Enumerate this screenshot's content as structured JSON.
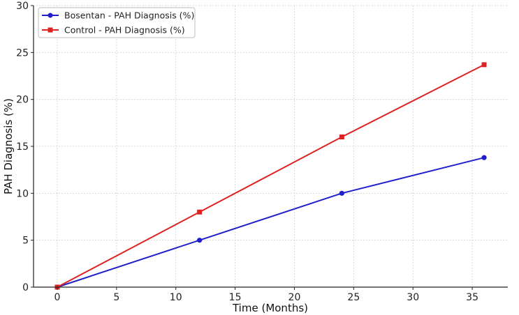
{
  "chart_data": {
    "type": "line",
    "title": "",
    "xlabel": "Time (Months)",
    "ylabel": "PAH Diagnosis (%)",
    "xlim": [
      -2,
      38
    ],
    "ylim": [
      0,
      30
    ],
    "xticks": [
      0,
      5,
      10,
      15,
      20,
      25,
      30,
      35
    ],
    "yticks": [
      0,
      5,
      10,
      15,
      20,
      25,
      30
    ],
    "grid": true,
    "legend_position": "top-left",
    "x": [
      0,
      12,
      24,
      36
    ],
    "series": [
      {
        "name": "Bosentan - PAH Diagnosis (%)",
        "values": [
          0,
          5,
          10,
          13.8
        ],
        "color": "#1f1fcc",
        "marker": "circle"
      },
      {
        "name": "Control - PAH Diagnosis (%)",
        "values": [
          0,
          8,
          16,
          23.7
        ],
        "color": "#dd2222",
        "marker": "square"
      }
    ]
  }
}
